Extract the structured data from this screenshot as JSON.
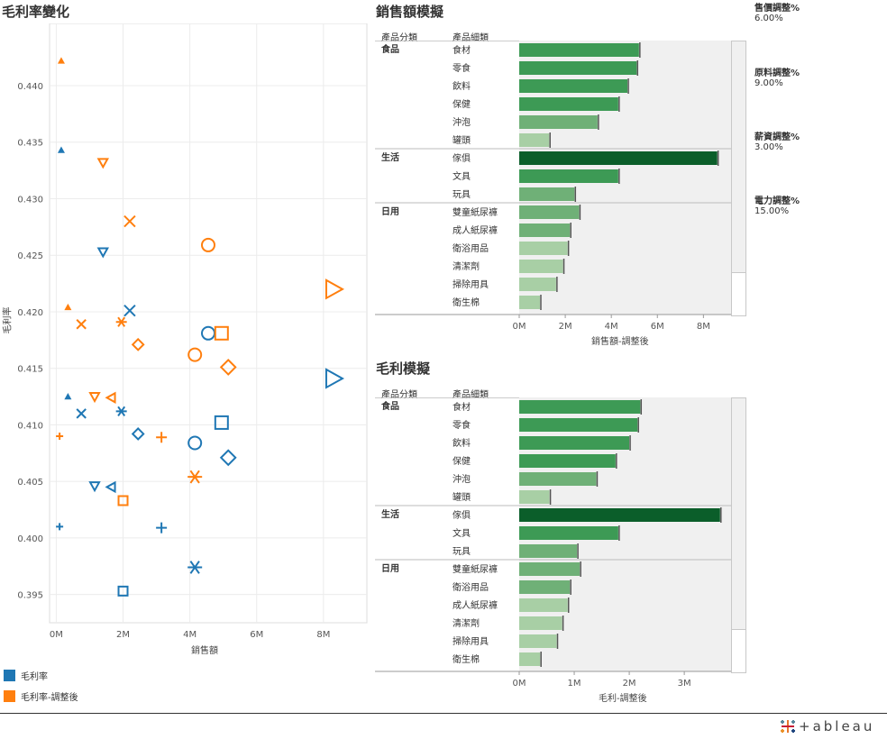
{
  "scatter": {
    "title": "毛利率變化",
    "ylabel": "毛利率",
    "xlabel": "銷售額",
    "legend": [
      {
        "label": "毛利率",
        "color": "#1f77b4"
      },
      {
        "label": "毛利率-調整後",
        "color": "#ff7f0e"
      }
    ]
  },
  "sales_panel": {
    "title": "銷售額模擬",
    "col_cat": "產品分類",
    "col_sub": "產品細類",
    "axis_label": "銷售額-調整後",
    "ticks": [
      "0M",
      "2M",
      "4M",
      "6M",
      "8M"
    ]
  },
  "profit_panel": {
    "title": "毛利模擬",
    "col_cat": "產品分類",
    "col_sub": "產品細類",
    "axis_label": "毛利-調整後",
    "ticks": [
      "0M",
      "1M",
      "2M",
      "3M"
    ]
  },
  "params": [
    {
      "label": "售價調整%",
      "value": "6.00%"
    },
    {
      "label": "原料調整%",
      "value": "9.00%"
    },
    {
      "label": "薪資調整%",
      "value": "3.00%"
    },
    {
      "label": "電力調整%",
      "value": "15.00%"
    }
  ],
  "logo": "+ableau",
  "colors": {
    "blue": "#1f77b4",
    "orange": "#ff7f0e",
    "dark_green": "#0b5e2a"
  },
  "chart_data": [
    {
      "type": "scatter",
      "title": "毛利率變化",
      "xlabel": "銷售額",
      "ylabel": "毛利率",
      "xlim": [
        -0.2,
        9.3
      ],
      "ylim": [
        0.3925,
        0.4455
      ],
      "x_ticks": [
        "0M",
        "2M",
        "4M",
        "6M",
        "8M"
      ],
      "x_tick_values": [
        0,
        2,
        4,
        6,
        8
      ],
      "y_ticks": [
        "0.395",
        "0.400",
        "0.405",
        "0.410",
        "0.415",
        "0.420",
        "0.425",
        "0.430",
        "0.435",
        "0.440"
      ],
      "y_tick_values": [
        0.395,
        0.4,
        0.405,
        0.41,
        0.415,
        0.42,
        0.425,
        0.43,
        0.435,
        0.44
      ],
      "series": [
        {
          "name": "毛利率",
          "color": "#1f77b4",
          "points": [
            {
              "x": 0.1,
              "y": 0.401,
              "shape": "plus",
              "size": 4
            },
            {
              "x": 0.15,
              "y": 0.4343,
              "shape": "tri-up",
              "size": 4
            },
            {
              "x": 0.35,
              "y": 0.4125,
              "shape": "tri-up",
              "size": 4
            },
            {
              "x": 0.75,
              "y": 0.411,
              "shape": "x",
              "size": 5
            },
            {
              "x": 1.15,
              "y": 0.4046,
              "shape": "tri-down",
              "size": 5
            },
            {
              "x": 1.4,
              "y": 0.4253,
              "shape": "tri-down",
              "size": 5
            },
            {
              "x": 1.65,
              "y": 0.4045,
              "shape": "tri-left",
              "size": 5
            },
            {
              "x": 1.95,
              "y": 0.4112,
              "shape": "asterisk",
              "size": 6
            },
            {
              "x": 2.0,
              "y": 0.3953,
              "shape": "square",
              "size": 5
            },
            {
              "x": 2.2,
              "y": 0.4201,
              "shape": "x",
              "size": 6
            },
            {
              "x": 2.45,
              "y": 0.4092,
              "shape": "diamond",
              "size": 6
            },
            {
              "x": 3.15,
              "y": 0.4009,
              "shape": "plus",
              "size": 6
            },
            {
              "x": 4.15,
              "y": 0.3974,
              "shape": "asterisk",
              "size": 8
            },
            {
              "x": 4.15,
              "y": 0.4084,
              "shape": "circle",
              "size": 7
            },
            {
              "x": 4.55,
              "y": 0.4181,
              "shape": "circle",
              "size": 7
            },
            {
              "x": 4.95,
              "y": 0.4102,
              "shape": "square",
              "size": 7
            },
            {
              "x": 5.15,
              "y": 0.4071,
              "shape": "diamond",
              "size": 8
            },
            {
              "x": 8.3,
              "y": 0.4141,
              "shape": "tri-right",
              "size": 10
            }
          ]
        },
        {
          "name": "毛利率-調整後",
          "color": "#ff7f0e",
          "points": [
            {
              "x": 0.1,
              "y": 0.409,
              "shape": "plus",
              "size": 4
            },
            {
              "x": 0.15,
              "y": 0.4422,
              "shape": "tri-up",
              "size": 4
            },
            {
              "x": 0.35,
              "y": 0.4204,
              "shape": "tri-up",
              "size": 4
            },
            {
              "x": 0.75,
              "y": 0.4189,
              "shape": "x",
              "size": 5
            },
            {
              "x": 1.15,
              "y": 0.4125,
              "shape": "tri-down",
              "size": 5
            },
            {
              "x": 1.4,
              "y": 0.4332,
              "shape": "tri-down",
              "size": 5
            },
            {
              "x": 1.65,
              "y": 0.4124,
              "shape": "tri-left",
              "size": 5
            },
            {
              "x": 1.95,
              "y": 0.4191,
              "shape": "asterisk",
              "size": 6
            },
            {
              "x": 2.0,
              "y": 0.4033,
              "shape": "square",
              "size": 5
            },
            {
              "x": 2.2,
              "y": 0.428,
              "shape": "x",
              "size": 6
            },
            {
              "x": 2.45,
              "y": 0.4171,
              "shape": "diamond",
              "size": 6
            },
            {
              "x": 3.15,
              "y": 0.4089,
              "shape": "plus",
              "size": 6
            },
            {
              "x": 4.15,
              "y": 0.4054,
              "shape": "asterisk",
              "size": 8
            },
            {
              "x": 4.15,
              "y": 0.4162,
              "shape": "circle",
              "size": 7
            },
            {
              "x": 4.55,
              "y": 0.4259,
              "shape": "circle",
              "size": 7
            },
            {
              "x": 4.95,
              "y": 0.4181,
              "shape": "square",
              "size": 7
            },
            {
              "x": 5.15,
              "y": 0.4151,
              "shape": "diamond",
              "size": 8
            },
            {
              "x": 8.3,
              "y": 0.422,
              "shape": "tri-right",
              "size": 10
            }
          ]
        }
      ]
    },
    {
      "type": "bar",
      "title": "銷售額模擬",
      "xlabel": "銷售額-調整後",
      "x_ticks": [
        "0M",
        "2M",
        "4M",
        "6M",
        "8M"
      ],
      "x_tick_values": [
        0,
        2,
        4,
        6,
        8
      ],
      "xlim": [
        0,
        9.2
      ],
      "groups": [
        {
          "name": "食品",
          "rows": [
            {
              "label": "食材",
              "value": 5.2
            },
            {
              "label": "零食",
              "value": 5.1
            },
            {
              "label": "飲料",
              "value": 4.7
            },
            {
              "label": "保健",
              "value": 4.3
            },
            {
              "label": "沖泡",
              "value": 3.4
            },
            {
              "label": "罐頭",
              "value": 1.3
            }
          ]
        },
        {
          "name": "生活",
          "rows": [
            {
              "label": "傢俱",
              "value": 8.6,
              "highlight": true
            },
            {
              "label": "文具",
              "value": 4.3
            },
            {
              "label": "玩具",
              "value": 2.4
            }
          ]
        },
        {
          "name": "日用",
          "rows": [
            {
              "label": "雙童紙尿褲",
              "value": 2.6
            },
            {
              "label": "成人紙尿褲",
              "value": 2.2
            },
            {
              "label": "衛浴用品",
              "value": 2.1
            },
            {
              "label": "清潔劑",
              "value": 1.9
            },
            {
              "label": "掃除用具",
              "value": 1.6
            },
            {
              "label": "衛生棉",
              "value": 0.9
            }
          ]
        }
      ]
    },
    {
      "type": "bar",
      "title": "毛利模擬",
      "xlabel": "毛利-調整後",
      "x_ticks": [
        "0M",
        "1M",
        "2M",
        "3M"
      ],
      "x_tick_values": [
        0,
        1,
        2,
        3
      ],
      "xlim": [
        0,
        3.85
      ],
      "groups": [
        {
          "name": "食品",
          "rows": [
            {
              "label": "食材",
              "value": 2.2
            },
            {
              "label": "零食",
              "value": 2.15
            },
            {
              "label": "飲料",
              "value": 2.0
            },
            {
              "label": "保健",
              "value": 1.75
            },
            {
              "label": "沖泡",
              "value": 1.4
            },
            {
              "label": "罐頭",
              "value": 0.55
            }
          ]
        },
        {
          "name": "生活",
          "rows": [
            {
              "label": "傢俱",
              "value": 3.65,
              "highlight": true
            },
            {
              "label": "文具",
              "value": 1.8
            },
            {
              "label": "玩具",
              "value": 1.05
            }
          ]
        },
        {
          "name": "日用",
          "rows": [
            {
              "label": "雙童紙尿褲",
              "value": 1.1
            },
            {
              "label": "衛浴用品",
              "value": 0.92
            },
            {
              "label": "成人紙尿褲",
              "value": 0.88
            },
            {
              "label": "清潔劑",
              "value": 0.78
            },
            {
              "label": "掃除用具",
              "value": 0.68
            },
            {
              "label": "衛生棉",
              "value": 0.38
            }
          ]
        }
      ]
    }
  ]
}
